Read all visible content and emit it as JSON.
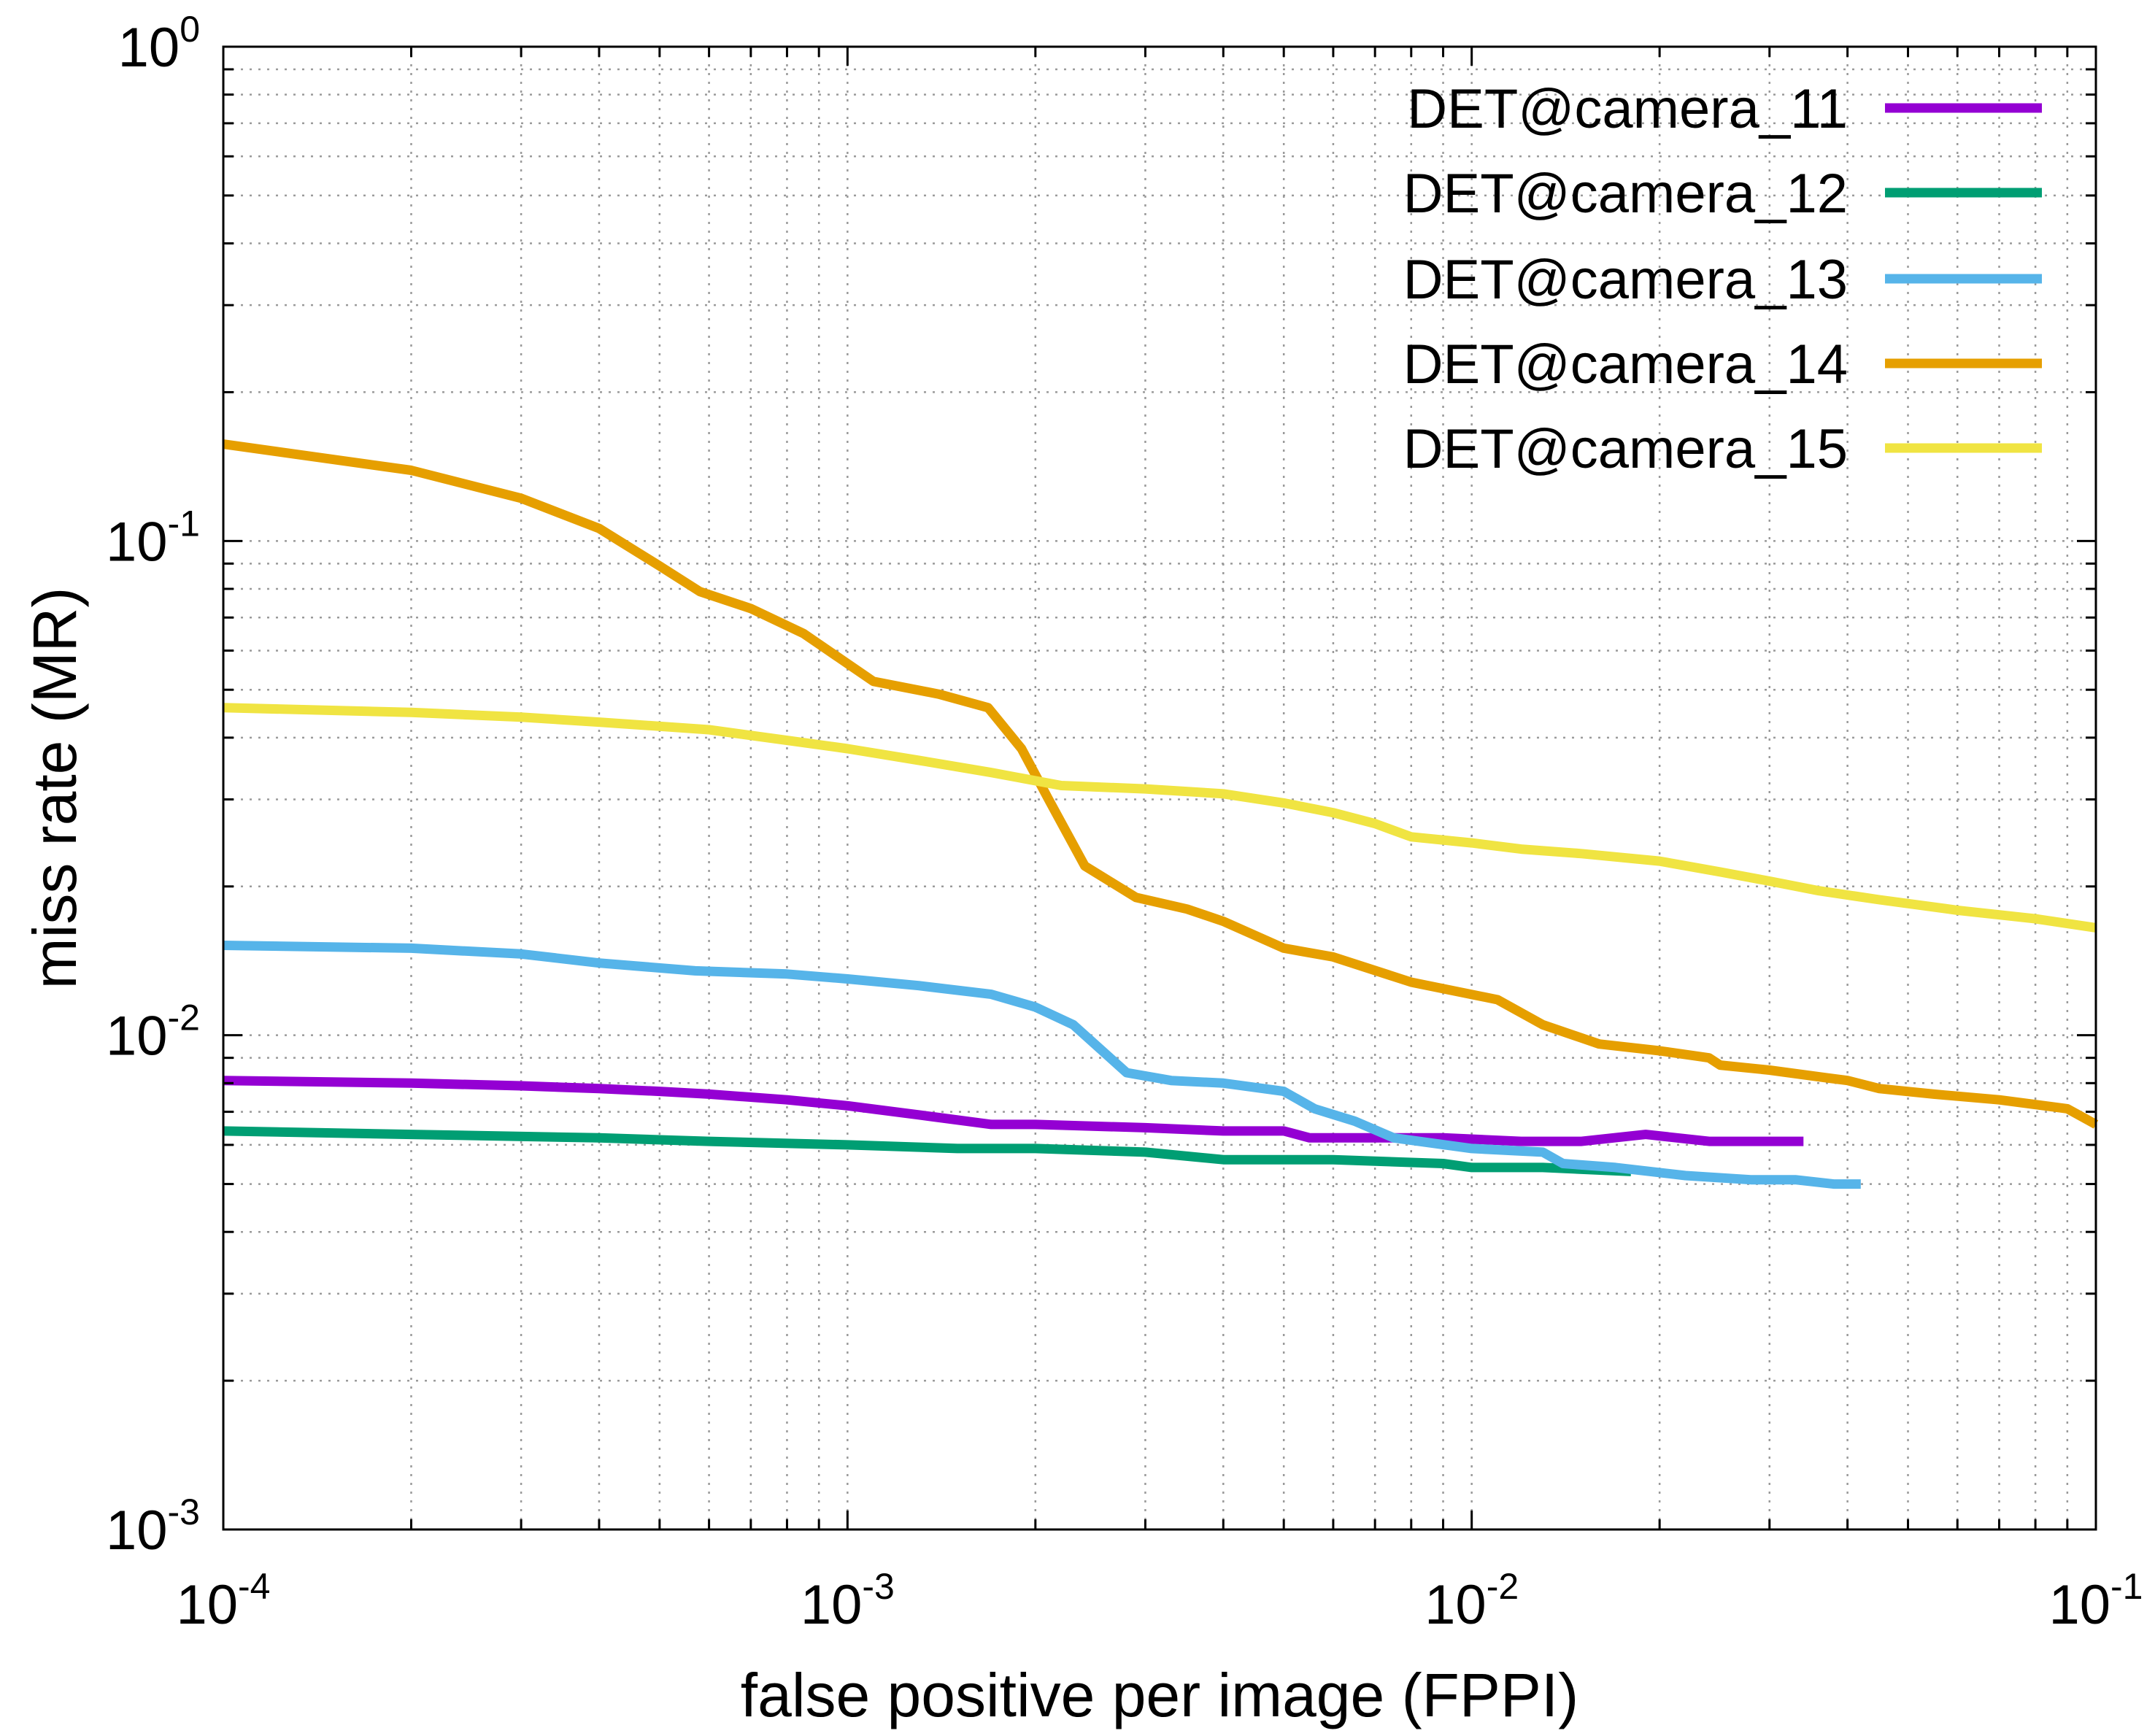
{
  "chart_data": {
    "type": "line",
    "x_scale": "log",
    "y_scale": "log",
    "xlabel": "false positive per image (FPPI)",
    "ylabel": "miss rate (MR)",
    "xlim": [
      0.0001,
      0.1
    ],
    "ylim": [
      0.001,
      1
    ],
    "grid": true,
    "legend_position": "top-right",
    "x_ticks": [
      {
        "base": "10",
        "exp": "-4",
        "value": 0.0001
      },
      {
        "base": "10",
        "exp": "-3",
        "value": 0.001
      },
      {
        "base": "10",
        "exp": "-2",
        "value": 0.01
      },
      {
        "base": "10",
        "exp": "-1",
        "value": 0.1
      }
    ],
    "y_ticks": [
      {
        "base": "10",
        "exp": "-3",
        "value": 0.001
      },
      {
        "base": "10",
        "exp": "-2",
        "value": 0.01
      },
      {
        "base": "10",
        "exp": "-1",
        "value": 0.1
      },
      {
        "base": "10",
        "exp": "0",
        "value": 1
      }
    ],
    "series": [
      {
        "name": "DET@camera_11",
        "color": "#9400d3",
        "x": [
          0.0001,
          0.0002,
          0.0003,
          0.0004,
          0.0005,
          0.0006,
          0.0008,
          0.001,
          0.0013,
          0.0017,
          0.002,
          0.003,
          0.004,
          0.005,
          0.0055,
          0.007,
          0.009,
          0.012,
          0.015,
          0.019,
          0.024,
          0.034
        ],
        "y": [
          0.0081,
          0.008,
          0.0079,
          0.0078,
          0.0077,
          0.0076,
          0.0074,
          0.0072,
          0.0069,
          0.0066,
          0.0066,
          0.0065,
          0.0064,
          0.0064,
          0.0062,
          0.0062,
          0.0062,
          0.0061,
          0.0061,
          0.0063,
          0.0061,
          0.0061
        ]
      },
      {
        "name": "DET@camera_12",
        "color": "#009e73",
        "x": [
          0.0001,
          0.0002,
          0.0004,
          0.0006,
          0.001,
          0.0015,
          0.002,
          0.003,
          0.004,
          0.006,
          0.009,
          0.01,
          0.013,
          0.018
        ],
        "y": [
          0.0064,
          0.0063,
          0.0062,
          0.0061,
          0.006,
          0.0059,
          0.0059,
          0.0058,
          0.0056,
          0.0056,
          0.0055,
          0.0054,
          0.0054,
          0.0053
        ]
      },
      {
        "name": "DET@camera_13",
        "color": "#56b4e9",
        "x": [
          0.0001,
          0.0002,
          0.0003,
          0.0004,
          0.00057,
          0.0008,
          0.001,
          0.0013,
          0.0017,
          0.002,
          0.0023,
          0.0028,
          0.0033,
          0.004,
          0.005,
          0.0056,
          0.0065,
          0.0075,
          0.01,
          0.013,
          0.014,
          0.017,
          0.022,
          0.028,
          0.033,
          0.038,
          0.042
        ],
        "y": [
          0.0152,
          0.015,
          0.0146,
          0.014,
          0.0135,
          0.0133,
          0.013,
          0.0126,
          0.0121,
          0.0114,
          0.0105,
          0.0084,
          0.0081,
          0.008,
          0.0077,
          0.0071,
          0.0067,
          0.0062,
          0.0059,
          0.0058,
          0.0055,
          0.0054,
          0.0052,
          0.0051,
          0.0051,
          0.005,
          0.005
        ]
      },
      {
        "name": "DET@camera_14",
        "color": "#e69f00",
        "x": [
          0.0001,
          0.0002,
          0.0003,
          0.0004,
          0.0005,
          0.00058,
          0.0007,
          0.00085,
          0.0011,
          0.0014,
          0.00168,
          0.0019,
          0.0021,
          0.0024,
          0.0029,
          0.0035,
          0.004,
          0.005,
          0.006,
          0.008,
          0.011,
          0.013,
          0.016,
          0.02,
          0.024,
          0.025,
          0.03,
          0.037,
          0.04,
          0.045,
          0.055,
          0.07,
          0.09,
          0.1
        ],
        "y": [
          0.157,
          0.139,
          0.122,
          0.106,
          0.089,
          0.079,
          0.073,
          0.065,
          0.052,
          0.049,
          0.046,
          0.038,
          0.03,
          0.022,
          0.019,
          0.018,
          0.017,
          0.015,
          0.0144,
          0.0128,
          0.0118,
          0.0105,
          0.0096,
          0.0093,
          0.009,
          0.0087,
          0.0085,
          0.0082,
          0.0081,
          0.0078,
          0.0076,
          0.0074,
          0.0071,
          0.0066
        ]
      },
      {
        "name": "DET@camera_15",
        "color": "#f0e442",
        "x": [
          0.0001,
          0.0002,
          0.0003,
          0.0004,
          0.0006,
          0.0008,
          0.001,
          0.0013,
          0.0017,
          0.0022,
          0.003,
          0.004,
          0.005,
          0.006,
          0.007,
          0.008,
          0.01,
          0.012,
          0.015,
          0.02,
          0.025,
          0.03,
          0.036,
          0.045,
          0.06,
          0.08,
          0.1
        ],
        "y": [
          0.046,
          0.045,
          0.044,
          0.043,
          0.0415,
          0.0395,
          0.038,
          0.036,
          0.034,
          0.032,
          0.0315,
          0.0308,
          0.0295,
          0.0282,
          0.0268,
          0.0252,
          0.0245,
          0.0238,
          0.0233,
          0.0225,
          0.0214,
          0.0205,
          0.0196,
          0.0188,
          0.0179,
          0.0172,
          0.0165
        ]
      }
    ]
  }
}
